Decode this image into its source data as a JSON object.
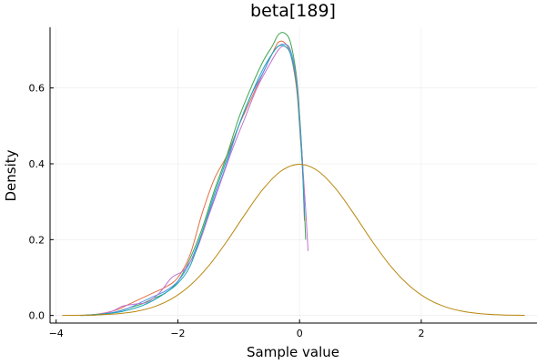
{
  "chart_data": {
    "type": "line",
    "title": "beta[189]",
    "xlabel": "Sample value",
    "ylabel": "Density",
    "xlim": [
      -4.1,
      3.9
    ],
    "ylim": [
      -0.02,
      0.76
    ],
    "xticks": [
      -4,
      -2,
      0,
      2
    ],
    "xtick_labels": [
      "−4",
      "−2",
      "0",
      "2"
    ],
    "yticks": [
      0.0,
      0.2,
      0.4,
      0.6
    ],
    "ytick_labels": [
      "0.0",
      "0.2",
      "0.4",
      "0.6"
    ],
    "grid": true,
    "legend": "none",
    "series": [
      {
        "color": "#e26f46",
        "x": [
          -3.6,
          -3.3,
          -3.0,
          -2.8,
          -2.6,
          -2.4,
          -2.2,
          -2.0,
          -1.8,
          -1.6,
          -1.4,
          -1.2,
          -1.0,
          -0.8,
          -0.6,
          -0.45,
          -0.35,
          -0.25,
          -0.15,
          -0.05,
          0.0,
          0.05,
          0.08
        ],
        "values": [
          0.0,
          0.004,
          0.015,
          0.03,
          0.045,
          0.06,
          0.075,
          0.1,
          0.16,
          0.27,
          0.36,
          0.42,
          0.5,
          0.57,
          0.64,
          0.69,
          0.72,
          0.72,
          0.69,
          0.6,
          0.5,
          0.38,
          0.25
        ]
      },
      {
        "color": "#3da44d",
        "x": [
          -3.5,
          -3.2,
          -3.0,
          -2.8,
          -2.6,
          -2.4,
          -2.2,
          -2.0,
          -1.8,
          -1.6,
          -1.4,
          -1.2,
          -1.0,
          -0.8,
          -0.6,
          -0.45,
          -0.35,
          -0.25,
          -0.15,
          -0.05,
          0.0,
          0.05,
          0.08,
          0.1
        ],
        "values": [
          0.0,
          0.003,
          0.01,
          0.02,
          0.03,
          0.045,
          0.06,
          0.09,
          0.15,
          0.23,
          0.33,
          0.42,
          0.52,
          0.6,
          0.67,
          0.71,
          0.74,
          0.745,
          0.72,
          0.63,
          0.53,
          0.4,
          0.28,
          0.2
        ]
      },
      {
        "color": "#4f8df0",
        "x": [
          -3.6,
          -3.3,
          -3.0,
          -2.8,
          -2.6,
          -2.4,
          -2.2,
          -2.0,
          -1.8,
          -1.6,
          -1.4,
          -1.2,
          -1.0,
          -0.8,
          -0.6,
          -0.45,
          -0.35,
          -0.25,
          -0.15,
          -0.05,
          0.0,
          0.05,
          0.08
        ],
        "values": [
          0.0,
          0.003,
          0.01,
          0.02,
          0.035,
          0.05,
          0.065,
          0.09,
          0.14,
          0.22,
          0.31,
          0.4,
          0.5,
          0.58,
          0.64,
          0.69,
          0.71,
          0.715,
          0.7,
          0.62,
          0.52,
          0.4,
          0.28
        ]
      },
      {
        "color": "#c271d2",
        "x": [
          -3.4,
          -3.1,
          -2.9,
          -2.7,
          -2.5,
          -2.3,
          -2.1,
          -1.9,
          -1.7,
          -1.5,
          -1.3,
          -1.1,
          -0.9,
          -0.7,
          -0.5,
          -0.35,
          -0.25,
          -0.15,
          -0.05,
          0.0,
          0.05,
          0.1,
          0.14
        ],
        "values": [
          0.0,
          0.01,
          0.025,
          0.03,
          0.035,
          0.06,
          0.1,
          0.12,
          0.17,
          0.26,
          0.35,
          0.44,
          0.52,
          0.6,
          0.66,
          0.7,
          0.71,
          0.69,
          0.62,
          0.52,
          0.4,
          0.28,
          0.17
        ]
      },
      {
        "color": "#1aa6b5",
        "x": [
          -3.6,
          -3.3,
          -3.0,
          -2.8,
          -2.6,
          -2.4,
          -2.2,
          -2.0,
          -1.8,
          -1.6,
          -1.4,
          -1.2,
          -1.0,
          -0.8,
          -0.6,
          -0.45,
          -0.35,
          -0.25,
          -0.15,
          -0.05,
          0.0,
          0.05,
          0.08
        ],
        "values": [
          0.0,
          0.003,
          0.008,
          0.015,
          0.025,
          0.04,
          0.06,
          0.085,
          0.13,
          0.22,
          0.32,
          0.41,
          0.5,
          0.58,
          0.65,
          0.69,
          0.71,
          0.71,
          0.69,
          0.61,
          0.51,
          0.38,
          0.26
        ]
      },
      {
        "color": "#b8860b",
        "x": [
          -3.9,
          -3.6,
          -3.3,
          -3.0,
          -2.7,
          -2.4,
          -2.1,
          -1.8,
          -1.5,
          -1.2,
          -0.9,
          -0.6,
          -0.3,
          0.0,
          0.3,
          0.6,
          0.9,
          1.2,
          1.5,
          1.8,
          2.1,
          2.4,
          2.7,
          3.0,
          3.3,
          3.6,
          3.7
        ],
        "values": [
          0.0002,
          0.0006,
          0.0017,
          0.0044,
          0.0104,
          0.0224,
          0.044,
          0.079,
          0.1295,
          0.1942,
          0.2661,
          0.3332,
          0.3814,
          0.3989,
          0.3814,
          0.3332,
          0.2661,
          0.1942,
          0.1295,
          0.079,
          0.044,
          0.0224,
          0.0104,
          0.0044,
          0.0017,
          0.0006,
          0.0004
        ]
      }
    ]
  }
}
